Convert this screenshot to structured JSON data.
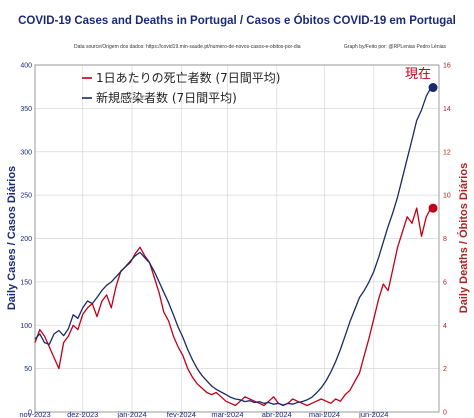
{
  "chart_data": {
    "type": "line",
    "title": "COVID-19 Cases and Deaths in Portugal  /  Casos e Óbitos COVID-19 em Portugal",
    "source": "Data source/Origem dos dados: https://covid19.min-saude.pt/numero-de-novos-casos-e-obitos-por-dia",
    "credit": "Graph by/Feito por: @RPLenias Pedro Lénias",
    "xlabel": "",
    "ylabel_left": "Daily Cases / Casos Diários",
    "ylabel_right": "Daily Deaths / Óbitos Diários",
    "x_ticks": [
      "nov-2023",
      "dez-2023",
      "jan-2024",
      "fev-2024",
      "mar-2024",
      "abr-2024",
      "mai-2024",
      "jun-2024"
    ],
    "y_left_lim": [
      0,
      400
    ],
    "y_left_ticks": [
      0,
      50,
      100,
      150,
      200,
      250,
      300,
      350,
      400
    ],
    "y_right_lim": [
      0,
      16
    ],
    "y_right_ticks": [
      0,
      2,
      4,
      6,
      8,
      10,
      12,
      14,
      16
    ],
    "grid": true,
    "legend_position": "top-left",
    "current_label": "現在",
    "x_start": "2023-11-01",
    "series": [
      {
        "name": "1日あたりの死亡者数 (7日間平均)",
        "axis": "right",
        "color": "#c0001a",
        "points": [
          [
            "2023-11-01",
            3.2
          ],
          [
            "2023-11-04",
            3.8
          ],
          [
            "2023-11-07",
            3.5
          ],
          [
            "2023-11-10",
            3.0
          ],
          [
            "2023-11-13",
            2.5
          ],
          [
            "2023-11-16",
            2.0
          ],
          [
            "2023-11-19",
            3.2
          ],
          [
            "2023-11-22",
            3.5
          ],
          [
            "2023-11-25",
            4.0
          ],
          [
            "2023-11-28",
            3.8
          ],
          [
            "2023-12-01",
            4.5
          ],
          [
            "2023-12-04",
            4.8
          ],
          [
            "2023-12-07",
            5.0
          ],
          [
            "2023-12-10",
            4.4
          ],
          [
            "2023-12-13",
            5.1
          ],
          [
            "2023-12-16",
            5.4
          ],
          [
            "2023-12-19",
            4.8
          ],
          [
            "2023-12-22",
            5.8
          ],
          [
            "2023-12-25",
            6.5
          ],
          [
            "2023-12-28",
            6.7
          ],
          [
            "2023-12-31",
            6.9
          ],
          [
            "2024-01-03",
            7.3
          ],
          [
            "2024-01-06",
            7.6
          ],
          [
            "2024-01-09",
            7.2
          ],
          [
            "2024-01-12",
            6.9
          ],
          [
            "2024-01-15",
            6.2
          ],
          [
            "2024-01-18",
            5.5
          ],
          [
            "2024-01-21",
            4.6
          ],
          [
            "2024-01-24",
            4.2
          ],
          [
            "2024-01-27",
            3.5
          ],
          [
            "2024-01-30",
            3.0
          ],
          [
            "2024-02-02",
            2.6
          ],
          [
            "2024-02-05",
            2.0
          ],
          [
            "2024-02-08",
            1.6
          ],
          [
            "2024-02-11",
            1.3
          ],
          [
            "2024-02-14",
            1.1
          ],
          [
            "2024-02-17",
            0.9
          ],
          [
            "2024-02-20",
            0.8
          ],
          [
            "2024-02-23",
            0.9
          ],
          [
            "2024-02-26",
            0.7
          ],
          [
            "2024-02-29",
            0.5
          ],
          [
            "2024-03-03",
            0.4
          ],
          [
            "2024-03-06",
            0.3
          ],
          [
            "2024-03-09",
            0.5
          ],
          [
            "2024-03-12",
            0.7
          ],
          [
            "2024-03-15",
            0.6
          ],
          [
            "2024-03-18",
            0.5
          ],
          [
            "2024-03-21",
            0.4
          ],
          [
            "2024-03-24",
            0.3
          ],
          [
            "2024-03-27",
            0.5
          ],
          [
            "2024-03-30",
            0.7
          ],
          [
            "2024-04-02",
            0.4
          ],
          [
            "2024-04-05",
            0.3
          ],
          [
            "2024-04-08",
            0.4
          ],
          [
            "2024-04-11",
            0.6
          ],
          [
            "2024-04-14",
            0.5
          ],
          [
            "2024-04-17",
            0.4
          ],
          [
            "2024-04-20",
            0.3
          ],
          [
            "2024-04-23",
            0.4
          ],
          [
            "2024-04-26",
            0.5
          ],
          [
            "2024-04-29",
            0.6
          ],
          [
            "2024-05-02",
            0.5
          ],
          [
            "2024-05-05",
            0.4
          ],
          [
            "2024-05-08",
            0.6
          ],
          [
            "2024-05-11",
            0.5
          ],
          [
            "2024-05-14",
            0.8
          ],
          [
            "2024-05-17",
            1.0
          ],
          [
            "2024-05-20",
            1.4
          ],
          [
            "2024-05-23",
            1.8
          ],
          [
            "2024-05-26",
            2.6
          ],
          [
            "2024-05-29",
            3.4
          ],
          [
            "2024-06-01",
            4.3
          ],
          [
            "2024-06-04",
            5.2
          ],
          [
            "2024-06-07",
            5.9
          ],
          [
            "2024-06-10",
            5.6
          ],
          [
            "2024-06-13",
            6.6
          ],
          [
            "2024-06-16",
            7.6
          ],
          [
            "2024-06-19",
            8.3
          ],
          [
            "2024-06-22",
            9.0
          ],
          [
            "2024-06-25",
            8.7
          ],
          [
            "2024-06-28",
            9.4
          ],
          [
            "2024-07-01",
            8.1
          ],
          [
            "2024-07-04",
            9.0
          ],
          [
            "2024-07-07",
            9.4
          ]
        ]
      },
      {
        "name": "新規感染者数 (7日間平均)",
        "axis": "left",
        "color": "#1a2a6a",
        "points": [
          [
            "2023-11-01",
            84
          ],
          [
            "2023-11-04",
            90
          ],
          [
            "2023-11-07",
            80
          ],
          [
            "2023-11-10",
            78
          ],
          [
            "2023-11-13",
            90
          ],
          [
            "2023-11-16",
            94
          ],
          [
            "2023-11-19",
            88
          ],
          [
            "2023-11-22",
            96
          ],
          [
            "2023-11-25",
            112
          ],
          [
            "2023-11-28",
            108
          ],
          [
            "2023-12-01",
            120
          ],
          [
            "2023-12-04",
            128
          ],
          [
            "2023-12-07",
            125
          ],
          [
            "2023-12-10",
            132
          ],
          [
            "2023-12-13",
            140
          ],
          [
            "2023-12-16",
            146
          ],
          [
            "2023-12-19",
            150
          ],
          [
            "2023-12-22",
            156
          ],
          [
            "2023-12-25",
            162
          ],
          [
            "2023-12-28",
            168
          ],
          [
            "2023-12-31",
            174
          ],
          [
            "2024-01-03",
            180
          ],
          [
            "2024-01-06",
            184
          ],
          [
            "2024-01-09",
            178
          ],
          [
            "2024-01-12",
            172
          ],
          [
            "2024-01-15",
            162
          ],
          [
            "2024-01-18",
            150
          ],
          [
            "2024-01-21",
            138
          ],
          [
            "2024-01-24",
            126
          ],
          [
            "2024-01-27",
            112
          ],
          [
            "2024-01-30",
            98
          ],
          [
            "2024-02-02",
            86
          ],
          [
            "2024-02-05",
            72
          ],
          [
            "2024-02-08",
            60
          ],
          [
            "2024-02-11",
            50
          ],
          [
            "2024-02-14",
            42
          ],
          [
            "2024-02-17",
            36
          ],
          [
            "2024-02-20",
            30
          ],
          [
            "2024-02-23",
            26
          ],
          [
            "2024-02-26",
            23
          ],
          [
            "2024-02-29",
            20
          ],
          [
            "2024-03-03",
            17
          ],
          [
            "2024-03-06",
            15
          ],
          [
            "2024-03-09",
            14
          ],
          [
            "2024-03-12",
            12
          ],
          [
            "2024-03-15",
            13
          ],
          [
            "2024-03-18",
            11
          ],
          [
            "2024-03-21",
            12
          ],
          [
            "2024-03-24",
            10
          ],
          [
            "2024-03-27",
            11
          ],
          [
            "2024-03-30",
            9
          ],
          [
            "2024-04-02",
            10
          ],
          [
            "2024-04-05",
            8
          ],
          [
            "2024-04-08",
            10
          ],
          [
            "2024-04-11",
            9
          ],
          [
            "2024-04-14",
            11
          ],
          [
            "2024-04-17",
            12
          ],
          [
            "2024-04-20",
            14
          ],
          [
            "2024-04-23",
            17
          ],
          [
            "2024-04-26",
            22
          ],
          [
            "2024-04-29",
            28
          ],
          [
            "2024-05-02",
            36
          ],
          [
            "2024-05-05",
            46
          ],
          [
            "2024-05-08",
            58
          ],
          [
            "2024-05-11",
            72
          ],
          [
            "2024-05-14",
            88
          ],
          [
            "2024-05-17",
            104
          ],
          [
            "2024-05-20",
            118
          ],
          [
            "2024-05-23",
            132
          ],
          [
            "2024-05-26",
            140
          ],
          [
            "2024-05-29",
            150
          ],
          [
            "2024-06-01",
            162
          ],
          [
            "2024-06-04",
            178
          ],
          [
            "2024-06-07",
            196
          ],
          [
            "2024-06-10",
            214
          ],
          [
            "2024-06-13",
            230
          ],
          [
            "2024-06-16",
            248
          ],
          [
            "2024-06-19",
            270
          ],
          [
            "2024-06-22",
            292
          ],
          [
            "2024-06-25",
            314
          ],
          [
            "2024-06-28",
            336
          ],
          [
            "2024-07-01",
            348
          ],
          [
            "2024-07-04",
            364
          ],
          [
            "2024-07-07",
            374
          ]
        ]
      }
    ]
  }
}
